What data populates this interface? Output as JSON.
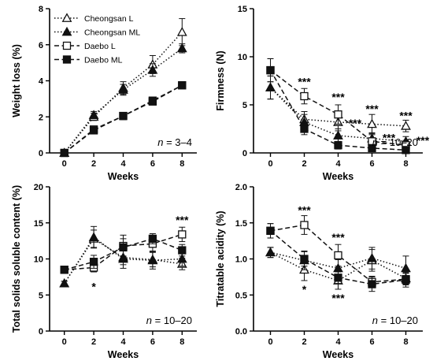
{
  "chart_data": [
    {
      "type": "line",
      "xlabel": "Weeks",
      "ylabel": "Weight loss (%)",
      "xlim": [
        -1,
        9
      ],
      "ylim": [
        0,
        8
      ],
      "xticks": [
        "0",
        "2",
        "4",
        "6",
        "8"
      ],
      "yticks": [
        "0",
        "2",
        "4",
        "6",
        "8"
      ],
      "annotation": "n = 3–4",
      "annotation_italic": "n",
      "annotation_rest": " = 3–4",
      "legend_placement": "top-left",
      "grid": false,
      "series": [
        {
          "name": "Cheongsan L",
          "marker": "triangle-open",
          "line": "dotted",
          "x": [
            0,
            2,
            4,
            6,
            8
          ],
          "y": [
            0,
            2.0,
            3.6,
            4.9,
            6.7
          ],
          "err": [
            0.05,
            0.2,
            0.35,
            0.5,
            0.75
          ]
        },
        {
          "name": "Cheongsan ML",
          "marker": "triangle-filled",
          "line": "dotted",
          "x": [
            0,
            2,
            4,
            6,
            8
          ],
          "y": [
            0,
            2.1,
            3.5,
            4.6,
            5.8
          ],
          "err": [
            0.05,
            0.2,
            0.3,
            0.35,
            0.25
          ]
        },
        {
          "name": "Daebo L",
          "marker": "square-open",
          "line": "dashed",
          "x": [
            0,
            2,
            4,
            6,
            8
          ],
          "y": [
            0,
            1.3,
            2.05,
            2.85,
            3.75
          ],
          "err": [
            0.05,
            0.15,
            0.2,
            0.2,
            0.1
          ]
        },
        {
          "name": "Daebo ML",
          "marker": "square-filled",
          "line": "dashed",
          "x": [
            0,
            2,
            4,
            6,
            8
          ],
          "y": [
            0,
            1.25,
            2.05,
            2.9,
            3.75
          ],
          "err": [
            0.05,
            0.12,
            0.2,
            0.2,
            0.1
          ]
        }
      ],
      "significance": []
    },
    {
      "type": "line",
      "xlabel": "Weeks",
      "ylabel": "Firmness (N)",
      "xlim": [
        -1,
        9
      ],
      "ylim": [
        0,
        15
      ],
      "xticks": [
        "0",
        "2",
        "4",
        "6",
        "8"
      ],
      "yticks": [
        "0",
        "5",
        "10",
        "15"
      ],
      "annotation": "n = 10–20",
      "annotation_italic": "n",
      "annotation_rest": " = 10–20",
      "grid": false,
      "series": [
        {
          "name": "Cheongsan L",
          "marker": "triangle-open",
          "line": "dotted",
          "x": [
            0,
            2,
            4,
            6,
            8
          ],
          "y": [
            6.8,
            3.5,
            3.2,
            3.0,
            2.8
          ],
          "err": [
            1.2,
            0.8,
            0.9,
            1.0,
            0.6
          ]
        },
        {
          "name": "Cheongsan ML",
          "marker": "triangle-filled",
          "line": "dotted",
          "x": [
            0,
            2,
            4,
            6,
            8
          ],
          "y": [
            6.8,
            3.2,
            1.8,
            1.5,
            1.2
          ],
          "err": [
            1.2,
            0.8,
            0.7,
            0.6,
            0.5
          ]
        },
        {
          "name": "Daebo L",
          "marker": "square-open",
          "line": "dashed",
          "x": [
            0,
            2,
            4,
            6,
            8
          ],
          "y": [
            8.6,
            5.9,
            4.0,
            1.2,
            0.8
          ],
          "err": [
            1.2,
            0.8,
            1.0,
            0.7,
            0.5
          ]
        },
        {
          "name": "Daebo ML",
          "marker": "square-filled",
          "line": "dashed",
          "x": [
            0,
            2,
            4,
            6,
            8
          ],
          "y": [
            8.6,
            2.5,
            0.8,
            0.5,
            0.3
          ],
          "err": [
            1.2,
            0.6,
            0.4,
            0.3,
            0.2
          ]
        }
      ],
      "significance": [
        {
          "x": 2,
          "y": 7.4,
          "label": "***"
        },
        {
          "x": 4,
          "y": 5.8,
          "label": "***"
        },
        {
          "x": 6,
          "y": 4.6,
          "label": "***"
        },
        {
          "x": 8,
          "y": 3.9,
          "label": "***"
        },
        {
          "x": 5,
          "y": 3.1,
          "label": "***"
        },
        {
          "x": 7,
          "y": 1.6,
          "label": "***"
        },
        {
          "x": 9,
          "y": 1.3,
          "label": "***"
        }
      ]
    },
    {
      "type": "line",
      "xlabel": "Weeks",
      "ylabel": "Total  solids soluble content (%)",
      "xlim": [
        -1,
        9
      ],
      "ylim": [
        0,
        20
      ],
      "xticks": [
        "0",
        "2",
        "4",
        "6",
        "8"
      ],
      "yticks": [
        "0",
        "5",
        "10",
        "15",
        "20"
      ],
      "annotation": "n = 10–20",
      "annotation_italic": "n",
      "annotation_rest": " = 10–20",
      "grid": false,
      "series": [
        {
          "name": "Cheongsan L",
          "marker": "triangle-open",
          "line": "dotted",
          "x": [
            0,
            2,
            4,
            6,
            8
          ],
          "y": [
            6.6,
            12.8,
            10.2,
            9.9,
            9.3
          ],
          "err": [
            0.3,
            1.2,
            1.0,
            1.0,
            0.8
          ]
        },
        {
          "name": "Cheongsan ML",
          "marker": "triangle-filled",
          "line": "dotted",
          "x": [
            0,
            2,
            4,
            6,
            8
          ],
          "y": [
            6.6,
            13.0,
            10.0,
            9.8,
            10.0
          ],
          "err": [
            0.3,
            1.5,
            1.3,
            1.2,
            1.0
          ]
        },
        {
          "name": "Daebo L",
          "marker": "square-open",
          "line": "dashed",
          "x": [
            0,
            2,
            4,
            6,
            8
          ],
          "y": [
            8.5,
            8.8,
            11.8,
            12.1,
            13.4
          ],
          "err": [
            0.3,
            0.6,
            1.5,
            1.0,
            1.0
          ]
        },
        {
          "name": "Daebo ML",
          "marker": "square-filled",
          "line": "dashed",
          "x": [
            0,
            2,
            4,
            6,
            8
          ],
          "y": [
            8.5,
            9.6,
            11.6,
            12.8,
            11.2
          ],
          "err": [
            0.3,
            0.9,
            1.2,
            0.7,
            0.8
          ]
        }
      ],
      "significance": [
        {
          "x": 2,
          "y": 6.2,
          "label": "*"
        },
        {
          "x": 8,
          "y": 15.4,
          "label": "***"
        }
      ]
    },
    {
      "type": "line",
      "xlabel": "Weeks",
      "ylabel": "Titratable acidity (%)",
      "xlim": [
        -1,
        9
      ],
      "ylim": [
        0,
        2.0
      ],
      "xticks": [
        "0",
        "2",
        "4",
        "6",
        "8"
      ],
      "yticks": [
        "0.0",
        "0.5",
        "1.0",
        "1.5",
        "2.0"
      ],
      "annotation": "n = 10–20",
      "annotation_italic": "n",
      "annotation_rest": " = 10–20",
      "grid": false,
      "series": [
        {
          "name": "Cheongsan L",
          "marker": "triangle-open",
          "line": "dotted",
          "x": [
            0,
            2,
            4,
            6,
            8
          ],
          "y": [
            1.09,
            0.85,
            0.7,
            0.98,
            0.73
          ],
          "err": [
            0.07,
            0.15,
            0.12,
            0.15,
            0.08
          ]
        },
        {
          "name": "Cheongsan ML",
          "marker": "triangle-filled",
          "line": "dotted",
          "x": [
            0,
            2,
            4,
            6,
            8
          ],
          "y": [
            1.09,
            0.98,
            0.87,
            1.01,
            0.87
          ],
          "err": [
            0.07,
            0.13,
            0.12,
            0.15,
            0.17
          ]
        },
        {
          "name": "Daebo L",
          "marker": "square-open",
          "line": "dashed",
          "x": [
            0,
            2,
            4,
            6,
            8
          ],
          "y": [
            1.39,
            1.47,
            1.05,
            0.68,
            0.72
          ],
          "err": [
            0.1,
            0.13,
            0.15,
            0.08,
            0.08
          ]
        },
        {
          "name": "Daebo ML",
          "marker": "square-filled",
          "line": "dashed",
          "x": [
            0,
            2,
            4,
            6,
            8
          ],
          "y": [
            1.39,
            1.0,
            0.74,
            0.65,
            0.71
          ],
          "err": [
            0.1,
            0.1,
            0.08,
            0.1,
            0.1
          ]
        }
      ],
      "significance": [
        {
          "x": 2,
          "y": 1.68,
          "label": "***"
        },
        {
          "x": 4,
          "y": 1.3,
          "label": "***"
        },
        {
          "x": 2,
          "y": 0.58,
          "label": "*"
        },
        {
          "x": 4,
          "y": 0.46,
          "label": "***"
        }
      ]
    }
  ]
}
